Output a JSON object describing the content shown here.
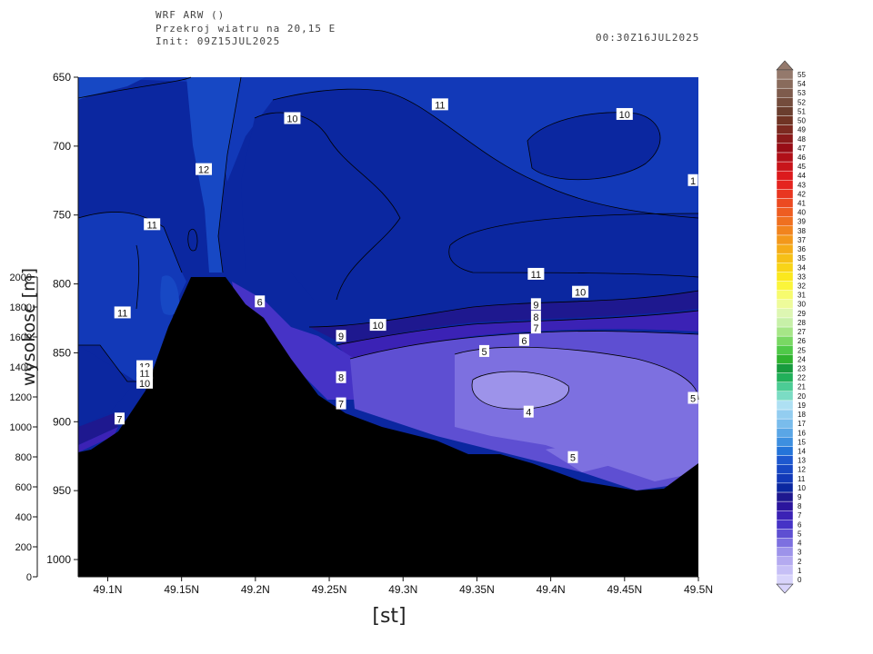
{
  "header": {
    "model": "WRF ARW ()",
    "title": "Przekroj wiatru na 20,15 E",
    "init": "Init: 09Z15JUL2025",
    "valid": "00:30Z16JUL2025"
  },
  "chart_data": {
    "type": "heatmap",
    "title": "Przekroj wiatru na 20,15 E",
    "xlabel": "[st]",
    "ylabel": "wysokosc [m]",
    "x_ticks": [
      "49.1N",
      "49.15N",
      "49.2N",
      "49.25N",
      "49.3N",
      "49.35N",
      "49.4N",
      "49.45N",
      "49.5N"
    ],
    "x_values": [
      49.1,
      49.15,
      49.2,
      49.25,
      49.3,
      49.35,
      49.4,
      49.45,
      49.5
    ],
    "xlim": [
      49.08,
      49.5
    ],
    "pressure_ticks": [
      650,
      700,
      750,
      800,
      850,
      900,
      950,
      1000
    ],
    "ylim_pressure": [
      650,
      1013
    ],
    "height_ticks": [
      0,
      200,
      400,
      600,
      800,
      1000,
      1200,
      1400,
      1600,
      1800,
      2000
    ],
    "colorbar_levels": [
      0,
      1,
      2,
      3,
      4,
      5,
      6,
      7,
      8,
      9,
      10,
      11,
      12,
      13,
      14,
      15,
      16,
      17,
      18,
      19,
      20,
      21,
      22,
      23,
      24,
      25,
      26,
      27,
      28,
      29,
      30,
      31,
      32,
      33,
      34,
      35,
      36,
      37,
      38,
      39,
      40,
      41,
      42,
      43,
      44,
      45,
      46,
      47,
      48,
      49,
      50,
      51,
      52,
      53,
      54,
      55
    ],
    "colorbar_colors": [
      "#d8d4fb",
      "#c6bff6",
      "#b4aaf0",
      "#9d93ea",
      "#7d70e0",
      "#5e4fd2",
      "#4633c6",
      "#3b22b5",
      "#2b159d",
      "#1e188f",
      "#0b27a0",
      "#1239b8",
      "#1748c4",
      "#1d58cf",
      "#2474d9",
      "#3d8fe0",
      "#5aa6e6",
      "#79bcec",
      "#93cdf0",
      "#aee0f3",
      "#7bdcc4",
      "#4ccc95",
      "#22b05a",
      "#189b3e",
      "#2fb32f",
      "#4fc948",
      "#79d863",
      "#a6e687",
      "#c7f0a8",
      "#ddf6b2",
      "#eefb9a",
      "#f7fb6e",
      "#fbf53b",
      "#fbe81e",
      "#f8d418",
      "#f6c017",
      "#f5ac18",
      "#f3981b",
      "#f1841e",
      "#ef7020",
      "#ee5d21",
      "#ec4a21",
      "#e93620",
      "#e5241f",
      "#dc1a1d",
      "#c8141a",
      "#b01018",
      "#980d16",
      "#8a1a1a",
      "#7c2a20",
      "#703424",
      "#6a3e2e",
      "#744c3c",
      "#7e5b4c",
      "#896b5c",
      "#94796c"
    ],
    "contour_labels": [
      {
        "value": 11,
        "lat": 49.325,
        "p": 670
      },
      {
        "value": 10,
        "lat": 49.225,
        "p": 680
      },
      {
        "value": 10,
        "lat": 49.45,
        "p": 677
      },
      {
        "value": 1,
        "lat": 49.5,
        "p": 725
      },
      {
        "value": 12,
        "lat": 49.165,
        "p": 717
      },
      {
        "value": 11,
        "lat": 49.13,
        "p": 757
      },
      {
        "value": 11,
        "lat": 49.11,
        "p": 821
      },
      {
        "value": 11,
        "lat": 49.39,
        "p": 793
      },
      {
        "value": 10,
        "lat": 49.42,
        "p": 806
      },
      {
        "value": 9,
        "lat": 49.39,
        "p": 815
      },
      {
        "value": 8,
        "lat": 49.39,
        "p": 824
      },
      {
        "value": 7,
        "lat": 49.39,
        "p": 832
      },
      {
        "value": 6,
        "lat": 49.382,
        "p": 841
      },
      {
        "value": 10,
        "lat": 49.283,
        "p": 830
      },
      {
        "value": 9,
        "lat": 49.258,
        "p": 838
      },
      {
        "value": 8,
        "lat": 49.258,
        "p": 868
      },
      {
        "value": 7,
        "lat": 49.258,
        "p": 887
      },
      {
        "value": 6,
        "lat": 49.203,
        "p": 813
      },
      {
        "value": 5,
        "lat": 49.355,
        "p": 849
      },
      {
        "value": 4,
        "lat": 49.385,
        "p": 893
      },
      {
        "value": 5,
        "lat": 49.5,
        "p": 883
      },
      {
        "value": 5,
        "lat": 49.415,
        "p": 926
      },
      {
        "value": 12,
        "lat": 49.125,
        "p": 860
      },
      {
        "value": 11,
        "lat": 49.125,
        "p": 865
      },
      {
        "value": 10,
        "lat": 49.125,
        "p": 872
      },
      {
        "value": 7,
        "lat": 49.108,
        "p": 898
      }
    ]
  }
}
